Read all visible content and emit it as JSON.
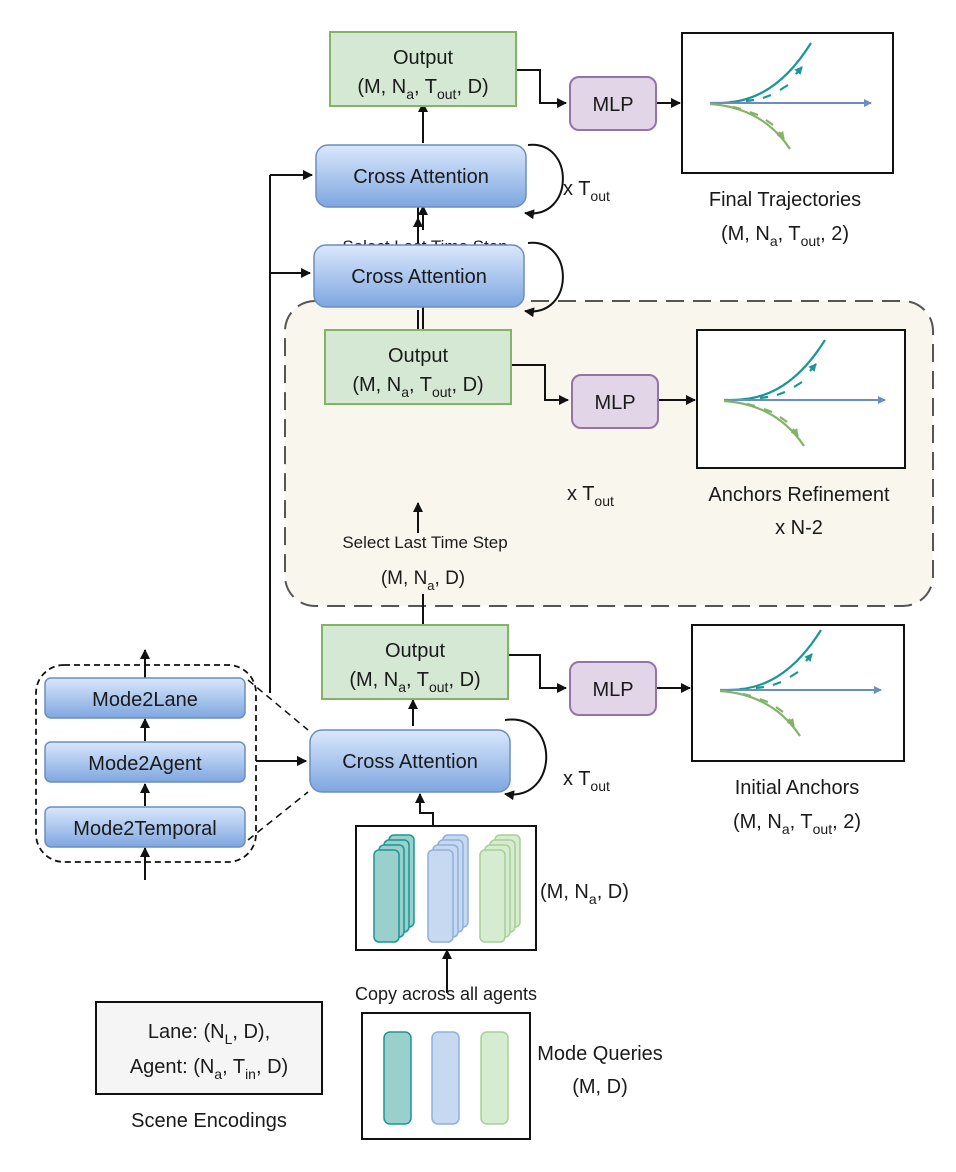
{
  "colors": {
    "output_fill": "#d5e8d4",
    "output_stroke": "#82b366",
    "mlp_fill": "#e1d5e7",
    "mlp_stroke": "#9673a6",
    "attn_fill_top": "#dae8fc",
    "attn_fill_bottom": "#7ea6e0",
    "attn_stroke": "#6c8ebf",
    "region_fill": "#f9f7ed",
    "region_stroke": "#555555",
    "traj_teal": "#1a9696",
    "traj_blue": "#6c8ebf",
    "traj_green": "#82b366",
    "query_teal": "#9ad0cc",
    "query_blue": "#c6d9f1",
    "query_green": "#d5ecd0"
  },
  "output_block": {
    "title": "Output",
    "shape": "(M, N",
    "shape_a": "a",
    "shape_mid": ", T",
    "shape_out": "out",
    "shape_end": ", D)"
  },
  "mlp_label": "MLP",
  "cross_attention_label": "Cross Attention",
  "loop_label": {
    "prefix": "x T",
    "sub": "out"
  },
  "select_last": "Select Last Time Step",
  "select_shape": {
    "pre": "(M, N",
    "sub": "a",
    "post": ", D)"
  },
  "final_trajectories": {
    "title": "Final Trajectories",
    "pre": "(M, N",
    "sub_a": "a",
    "mid": ", T",
    "sub_out": "out",
    "post": ", 2)"
  },
  "anchors_refinement": {
    "title": "Anchors Refinement",
    "repeat": "x N-2"
  },
  "initial_anchors": {
    "title": "Initial Anchors",
    "pre": "(M, N",
    "sub_a": "a",
    "mid": ", T",
    "sub_out": "out",
    "post": ", 2)"
  },
  "cross_attention_detail": [
    "Mode2Lane",
    "Mode2Agent",
    "Mode2Temporal"
  ],
  "query_copies_shape": {
    "pre": "(M, N",
    "sub": "a",
    "post": ", D)"
  },
  "copy_label": "Copy across all agents",
  "mode_queries": {
    "title": "Mode Queries",
    "shape": "(M, D)"
  },
  "scene_encodings": {
    "lane_pre": "Lane: (N",
    "lane_sub": "L",
    "lane_post": ", D),",
    "agent_pre": "Agent: (N",
    "agent_sub_a": "a",
    "agent_mid": ", T",
    "agent_sub_in": "in",
    "agent_post": ", D)",
    "caption": "Scene Encodings"
  }
}
